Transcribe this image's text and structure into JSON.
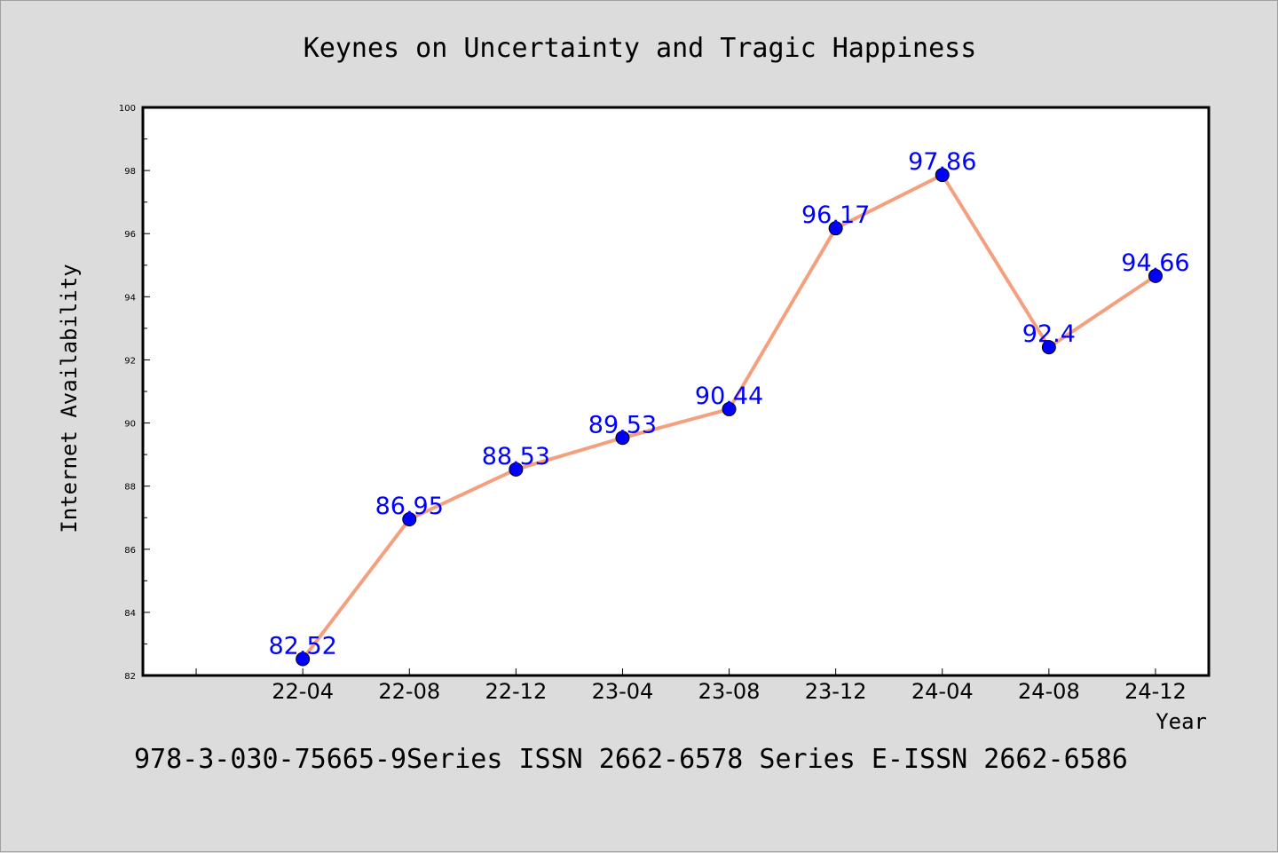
{
  "chart_data": {
    "type": "line",
    "title": "Keynes on Uncertainty and Tragic Happiness",
    "xlabel": "Year",
    "ylabel": "Internet Availability",
    "categories": [
      "22-04",
      "22-08",
      "22-12",
      "23-04",
      "23-08",
      "23-12",
      "24-04",
      "24-08",
      "24-12"
    ],
    "series": [
      {
        "values": [
          82.52,
          86.95,
          88.53,
          89.53,
          90.44,
          96.17,
          97.86,
          92.4,
          94.66
        ]
      }
    ],
    "data_labels": [
      "82.52",
      "86.95",
      "88.53",
      "89.53",
      "90.44",
      "96.17",
      "97.86",
      "92.4",
      "94.66"
    ],
    "ylim": [
      82,
      100
    ],
    "yticks": [
      82,
      84,
      86,
      88,
      90,
      92,
      94,
      96,
      98,
      100
    ],
    "x_axis_start": "21-12",
    "grid": false,
    "line_color": "#f4a07e",
    "marker_color": "#0000ff",
    "label_color": "#0000ff"
  },
  "footer": {
    "text": "978-3-030-75665-9Series ISSN 2662-6578 Series E-ISSN 2662-6586"
  }
}
